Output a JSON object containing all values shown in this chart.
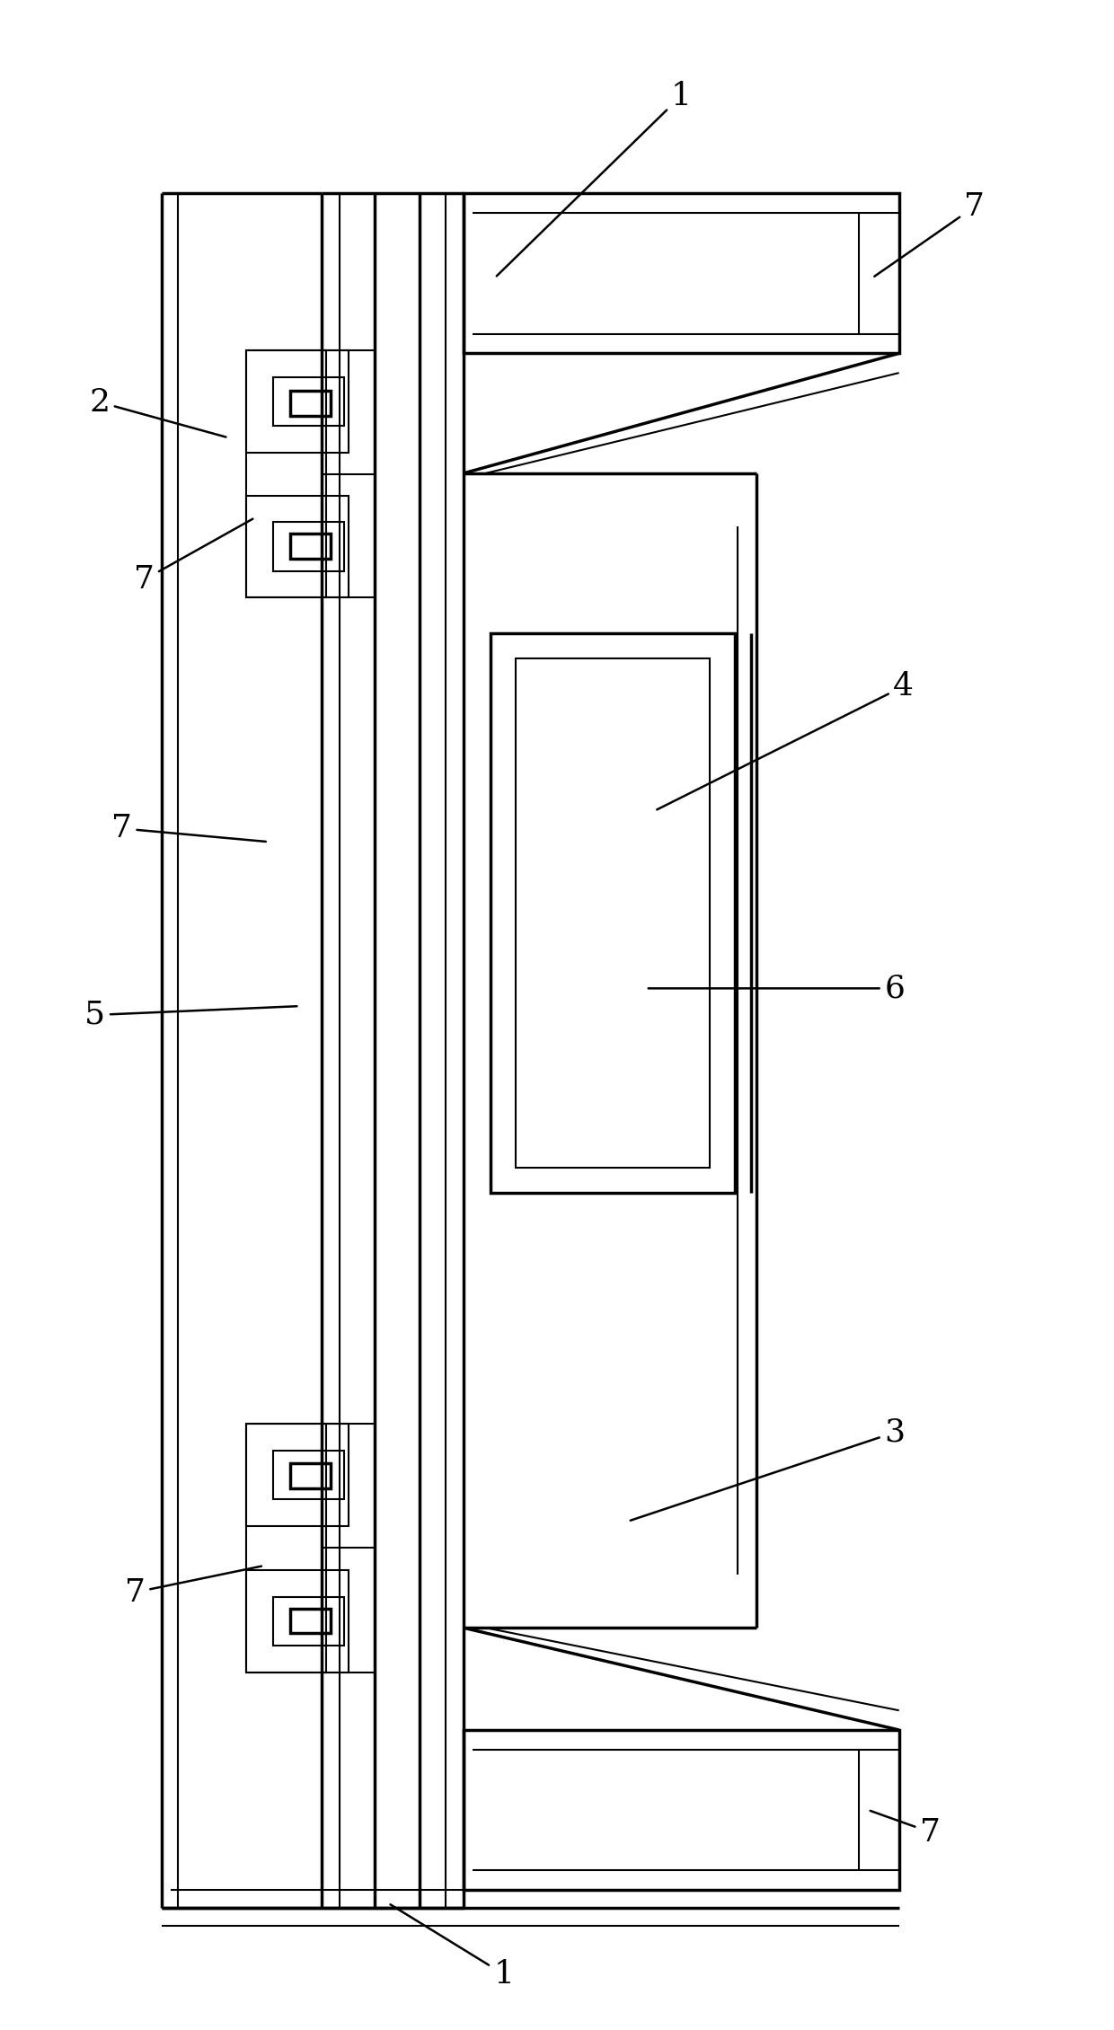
{
  "fig_width": 12.4,
  "fig_height": 22.6,
  "bg_color": "#ffffff",
  "line_color": "#000000",
  "lw_thick": 2.5,
  "lw_thin": 1.5,
  "lw_med": 2.0
}
